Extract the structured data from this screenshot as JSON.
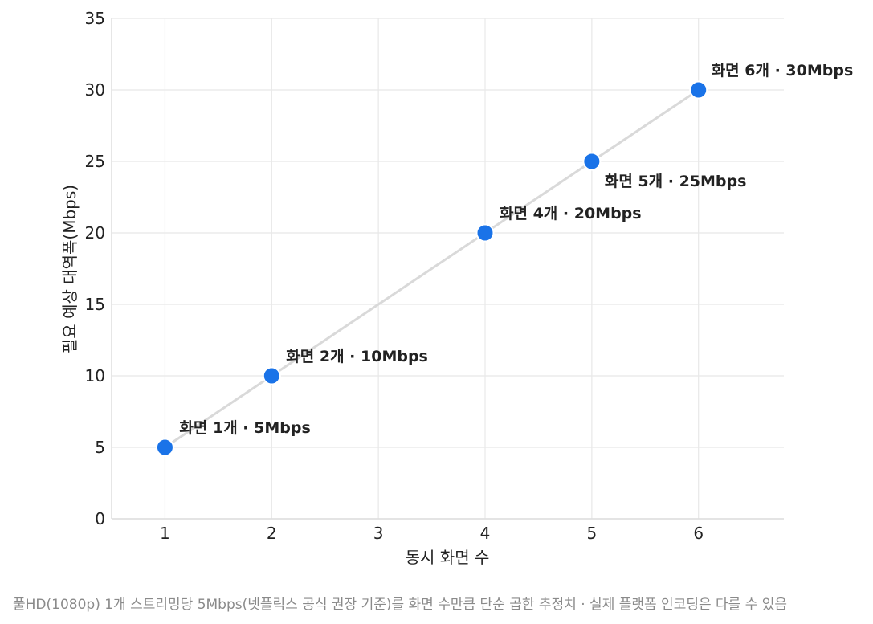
{
  "chart_data": {
    "type": "line",
    "x": [
      1,
      2,
      4,
      5,
      6
    ],
    "y": [
      5,
      10,
      20,
      25,
      30
    ],
    "point_labels": [
      "화면 1개 · 5Mbps",
      "화면 2개 · 10Mbps",
      "화면 4개 · 20Mbps",
      "화면 5개 · 25Mbps",
      "화면 6개 · 30Mbps"
    ],
    "xlabel": "동시 화면 수",
    "ylabel": "필요 예상 대역폭(Mbps)",
    "xticks": [
      1,
      2,
      3,
      4,
      5,
      6
    ],
    "yticks": [
      0,
      5,
      10,
      15,
      20,
      25,
      30,
      35
    ],
    "xlim": [
      0.5,
      6.8
    ],
    "ylim": [
      0,
      35
    ],
    "grid": true,
    "colors": {
      "point": "#1a73e8",
      "line": "#d9d9d9",
      "grid": "#e8e8e8",
      "text": "#222222"
    }
  },
  "caption": "풀HD(1080p) 1개 스트리밍당 5Mbps(넷플릭스 공식 권장 기준)를 화면 수만큼 단순 곱한 추정치 · 실제 플랫폼 인코딩은 다를 수 있음"
}
